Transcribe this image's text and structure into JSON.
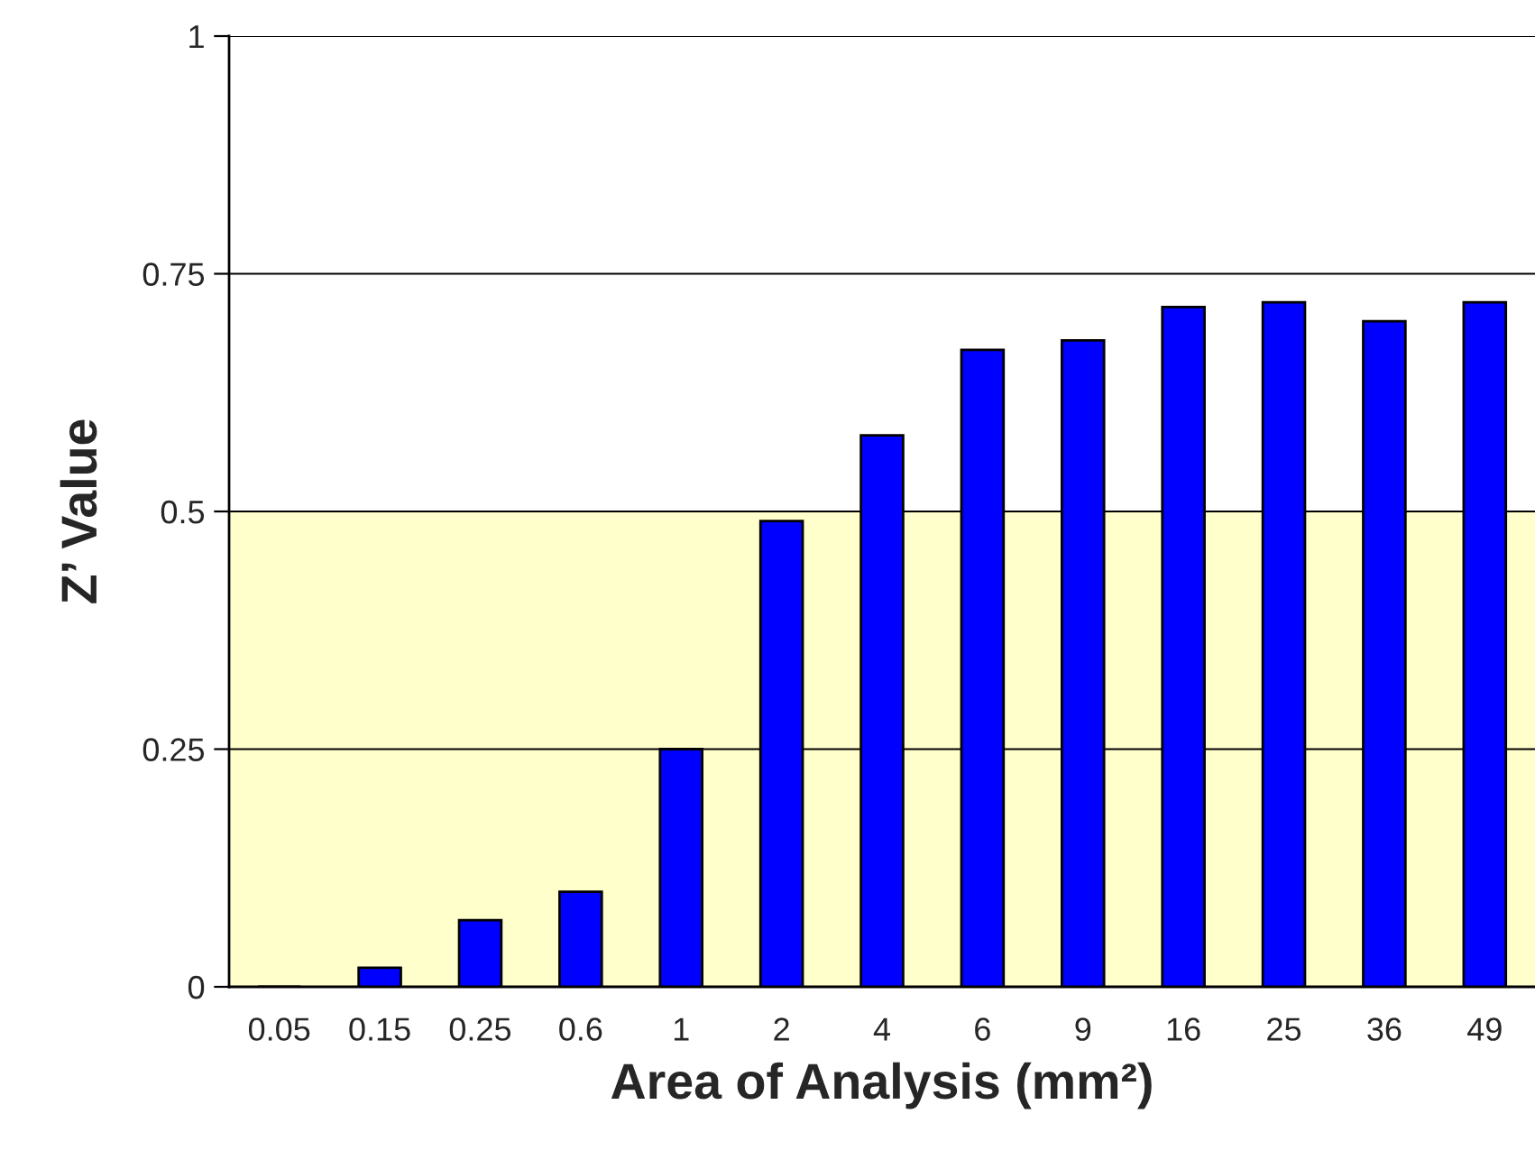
{
  "chart_data": {
    "type": "bar",
    "xlabel": "Area of Analysis (mm²)",
    "ylabel": "Z’ Value",
    "categories": [
      "0.05",
      "0.15",
      "0.25",
      "0.6",
      "1",
      "2",
      "4",
      "6",
      "9",
      "16",
      "25",
      "36",
      "49"
    ],
    "values": [
      0,
      0.02,
      0.07,
      0.1,
      0.25,
      0.49,
      0.58,
      0.67,
      0.68,
      0.715,
      0.72,
      0.7,
      0.72
    ],
    "color": "#0000ff",
    "ylim": [
      0,
      1
    ],
    "yticks": [
      0,
      0.25,
      0.5,
      0.75,
      1
    ],
    "bands": [
      {
        "axis": "y",
        "from": 0,
        "to": 0.5,
        "color": "#ffffcc"
      }
    ],
    "grid": "y",
    "legend": false
  }
}
